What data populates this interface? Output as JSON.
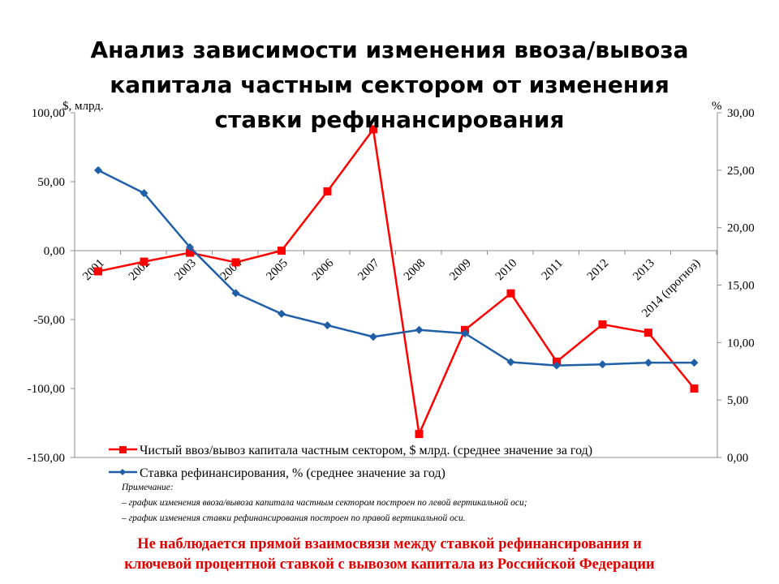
{
  "title_lines": [
    "Анализ зависимости изменения ввоза/вывоза",
    "капитала частным сектором от изменения",
    "ставки рефинансирования"
  ],
  "chart_data": {
    "type": "line",
    "categories": [
      "2001",
      "2002",
      "2003",
      "2004",
      "2005",
      "2006",
      "2007",
      "2008",
      "2009",
      "2010",
      "2011",
      "2012",
      "2013",
      "2014 (прогноз)"
    ],
    "left_axis": {
      "unit": "$, млрд.",
      "ylim": [
        -150,
        100
      ],
      "ticks": [
        "100,00",
        "50,00",
        "0,00",
        "-50,00",
        "-100,00",
        "-150,00"
      ]
    },
    "right_axis": {
      "unit": "%",
      "ylim": [
        0,
        30
      ],
      "ticks": [
        "30,00",
        "25,00",
        "20,00",
        "15,00",
        "10,00",
        "5,00",
        "0,00"
      ]
    },
    "series": [
      {
        "name": "Чистый ввоз/вывоз капитала частным сектором, $ млрд. (среднее значение за год)",
        "axis": "left",
        "color": "#ff0000",
        "marker": "square",
        "values": [
          -15,
          -8,
          -1.5,
          -8.5,
          0,
          43,
          88,
          -133,
          -57.5,
          -31,
          -80.5,
          -53.5,
          -59.5,
          -100
        ]
      },
      {
        "name": "Ставка рефинансирования, % (среднее значение за год)",
        "axis": "right",
        "color": "#1f5fa7",
        "marker": "diamond",
        "values": [
          25.0,
          23.0,
          18.3,
          14.3,
          12.5,
          11.5,
          10.5,
          11.1,
          10.8,
          8.3,
          8.0,
          8.1,
          8.25,
          8.25
        ]
      }
    ],
    "grid": false,
    "legend_position": "bottom"
  },
  "note": {
    "heading": "Примечание:",
    "lines": [
      "– график изменения ввоза/вывоза капитала частным сектором построен по левой вертикальной оси;",
      "– график изменения ставки рефинансирования построен по правой вертикальной оси."
    ]
  },
  "conclusion_lines": [
    "Не наблюдается прямой взаимосвязи между ставкой рефинансирования и",
    "ключевой процентной ставкой с вывозом капитала из Российской Федерации"
  ]
}
